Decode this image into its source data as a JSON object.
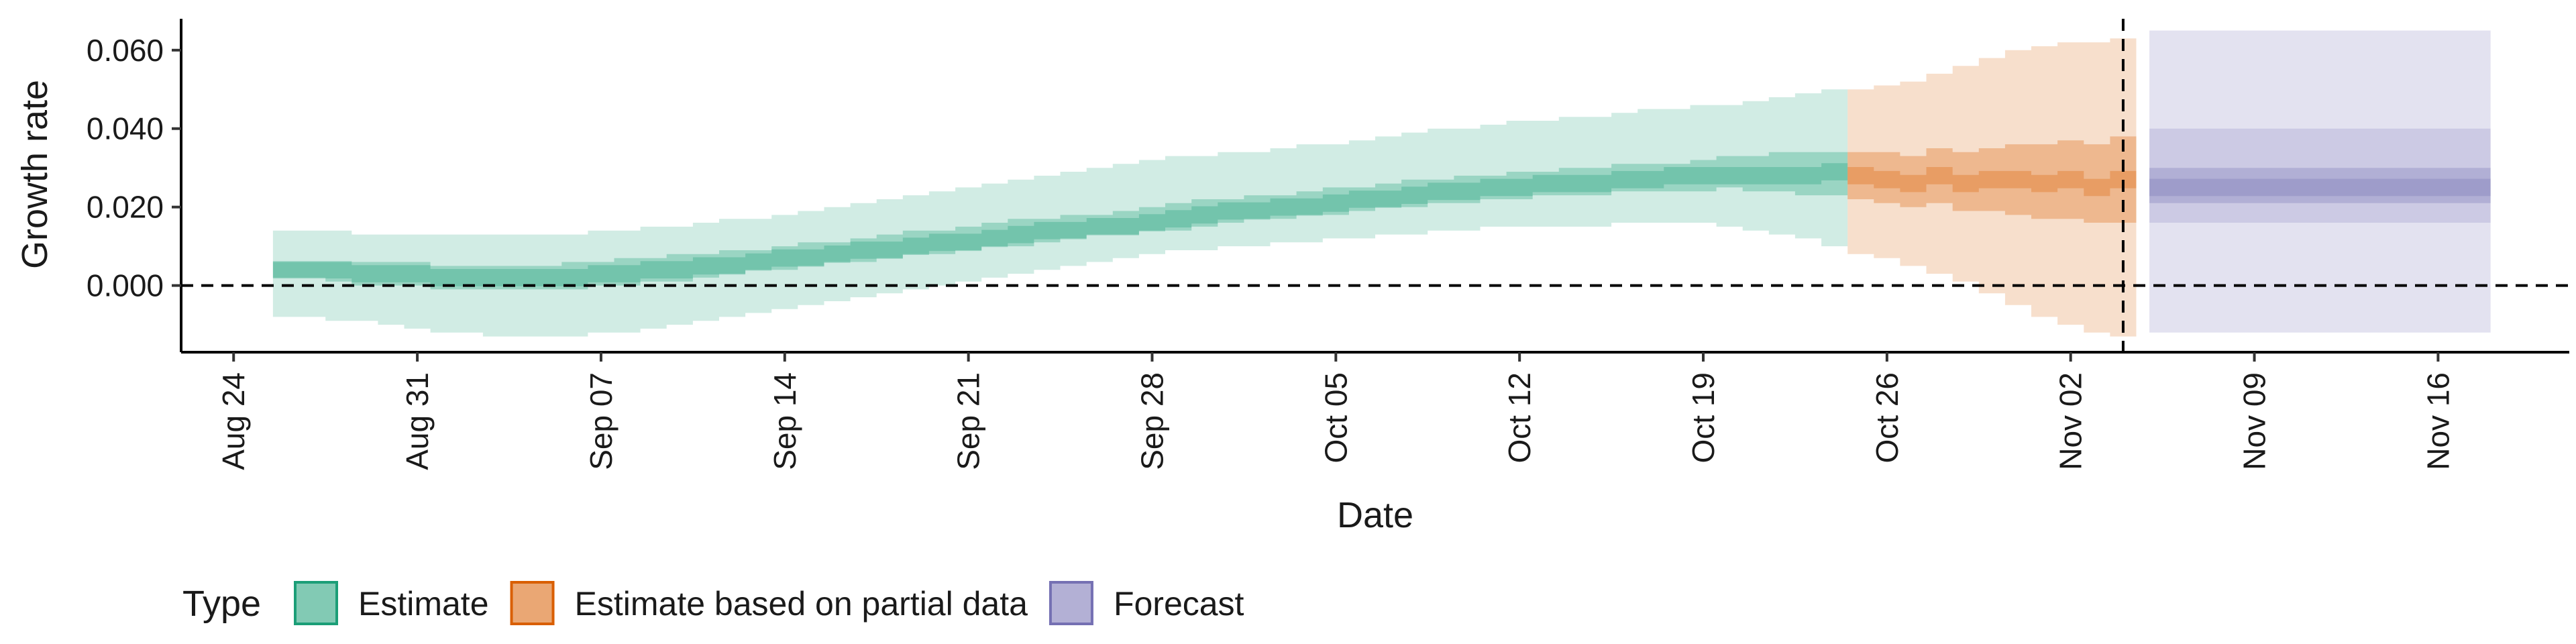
{
  "chart_data": {
    "type": "area",
    "xlabel": "Date",
    "ylabel": "Growth rate",
    "x_ticks": [
      "Aug 24",
      "Aug 31",
      "Sep 07",
      "Sep 14",
      "Sep 21",
      "Sep 28",
      "Oct 05",
      "Oct 12",
      "Oct 19",
      "Oct 26",
      "Nov 02",
      "Nov 09",
      "Nov 16"
    ],
    "y_ticks": [
      "0.000",
      "0.020",
      "0.040",
      "0.060"
    ],
    "y_tick_values": [
      0,
      0.02,
      0.04,
      0.06
    ],
    "ylim": [
      -0.017,
      0.068
    ],
    "xlim": [
      "2020-08-22",
      "2020-11-21"
    ],
    "reference_lines": [
      {
        "axis": "y",
        "value": 0,
        "style": "dashed"
      },
      {
        "axis": "x",
        "value": "2020-11-04",
        "style": "dashed"
      }
    ],
    "legend": {
      "title": "Type",
      "position": "bottom",
      "entries": [
        {
          "label": "Estimate",
          "color": "#1b9e77"
        },
        {
          "label": "Estimate based on partial data",
          "color": "#d95f02"
        },
        {
          "label": "Forecast",
          "color": "#7570b3"
        }
      ]
    },
    "series": [
      {
        "type": "Estimate",
        "color": "#1b9e77",
        "dates": [
          "2020-08-26",
          "2020-08-27",
          "2020-08-28",
          "2020-08-29",
          "2020-08-30",
          "2020-08-31",
          "2020-09-01",
          "2020-09-02",
          "2020-09-03",
          "2020-09-04",
          "2020-09-05",
          "2020-09-06",
          "2020-09-07",
          "2020-09-08",
          "2020-09-09",
          "2020-09-10",
          "2020-09-11",
          "2020-09-12",
          "2020-09-13",
          "2020-09-14",
          "2020-09-15",
          "2020-09-16",
          "2020-09-17",
          "2020-09-18",
          "2020-09-19",
          "2020-09-20",
          "2020-09-21",
          "2020-09-22",
          "2020-09-23",
          "2020-09-24",
          "2020-09-25",
          "2020-09-26",
          "2020-09-27",
          "2020-09-28",
          "2020-09-29",
          "2020-09-30",
          "2020-10-01",
          "2020-10-02",
          "2020-10-03",
          "2020-10-04",
          "2020-10-05",
          "2020-10-06",
          "2020-10-07",
          "2020-10-08",
          "2020-10-09",
          "2020-10-10",
          "2020-10-11",
          "2020-10-12",
          "2020-10-13",
          "2020-10-14",
          "2020-10-15",
          "2020-10-16",
          "2020-10-17",
          "2020-10-18",
          "2020-10-19",
          "2020-10-20",
          "2020-10-21",
          "2020-10-22",
          "2020-10-23",
          "2020-10-24"
        ],
        "median": [
          0.004,
          0.004,
          0.004,
          0.003,
          0.003,
          0.003,
          0.002,
          0.002,
          0.002,
          0.002,
          0.002,
          0.002,
          0.003,
          0.003,
          0.004,
          0.004,
          0.005,
          0.005,
          0.006,
          0.007,
          0.007,
          0.008,
          0.009,
          0.009,
          0.01,
          0.011,
          0.011,
          0.012,
          0.013,
          0.014,
          0.014,
          0.015,
          0.015,
          0.016,
          0.017,
          0.018,
          0.019,
          0.019,
          0.02,
          0.02,
          0.021,
          0.022,
          0.022,
          0.023,
          0.024,
          0.024,
          0.025,
          0.025,
          0.026,
          0.026,
          0.026,
          0.027,
          0.027,
          0.028,
          0.028,
          0.028,
          0.028,
          0.028,
          0.028,
          0.029
        ],
        "lower_50": [
          0.002,
          0.002,
          0.001,
          0.0,
          0.0,
          0.0,
          -0.001,
          -0.001,
          -0.001,
          -0.001,
          -0.001,
          -0.001,
          0.0,
          0.0,
          0.001,
          0.001,
          0.002,
          0.003,
          0.004,
          0.004,
          0.005,
          0.006,
          0.006,
          0.007,
          0.008,
          0.008,
          0.009,
          0.01,
          0.01,
          0.011,
          0.012,
          0.013,
          0.013,
          0.014,
          0.014,
          0.015,
          0.016,
          0.017,
          0.017,
          0.018,
          0.018,
          0.019,
          0.02,
          0.02,
          0.021,
          0.021,
          0.022,
          0.022,
          0.023,
          0.023,
          0.023,
          0.024,
          0.024,
          0.024,
          0.024,
          0.025,
          0.024,
          0.024,
          0.023,
          0.023
        ],
        "upper_50": [
          0.006,
          0.006,
          0.006,
          0.006,
          0.006,
          0.006,
          0.005,
          0.005,
          0.005,
          0.005,
          0.005,
          0.006,
          0.006,
          0.007,
          0.007,
          0.008,
          0.008,
          0.009,
          0.009,
          0.01,
          0.011,
          0.011,
          0.012,
          0.013,
          0.014,
          0.014,
          0.015,
          0.016,
          0.017,
          0.017,
          0.018,
          0.018,
          0.019,
          0.02,
          0.021,
          0.022,
          0.022,
          0.023,
          0.023,
          0.024,
          0.025,
          0.025,
          0.026,
          0.027,
          0.027,
          0.028,
          0.028,
          0.029,
          0.029,
          0.03,
          0.03,
          0.031,
          0.031,
          0.031,
          0.032,
          0.033,
          0.033,
          0.034,
          0.034,
          0.034
        ],
        "lower_90": [
          -0.008,
          -0.008,
          -0.009,
          -0.009,
          -0.01,
          -0.011,
          -0.012,
          -0.012,
          -0.013,
          -0.013,
          -0.013,
          -0.013,
          -0.012,
          -0.012,
          -0.011,
          -0.01,
          -0.009,
          -0.008,
          -0.007,
          -0.006,
          -0.005,
          -0.004,
          -0.003,
          -0.002,
          -0.001,
          0.0,
          0.001,
          0.002,
          0.003,
          0.004,
          0.005,
          0.006,
          0.007,
          0.008,
          0.009,
          0.009,
          0.01,
          0.01,
          0.011,
          0.011,
          0.012,
          0.012,
          0.013,
          0.013,
          0.014,
          0.014,
          0.015,
          0.015,
          0.015,
          0.015,
          0.015,
          0.016,
          0.016,
          0.016,
          0.016,
          0.015,
          0.014,
          0.013,
          0.012,
          0.01
        ],
        "upper_90": [
          0.014,
          0.014,
          0.014,
          0.013,
          0.013,
          0.013,
          0.013,
          0.013,
          0.013,
          0.013,
          0.013,
          0.013,
          0.014,
          0.014,
          0.015,
          0.015,
          0.016,
          0.017,
          0.017,
          0.018,
          0.019,
          0.02,
          0.021,
          0.022,
          0.023,
          0.024,
          0.025,
          0.026,
          0.027,
          0.028,
          0.029,
          0.03,
          0.031,
          0.032,
          0.033,
          0.033,
          0.034,
          0.034,
          0.035,
          0.036,
          0.036,
          0.037,
          0.038,
          0.039,
          0.04,
          0.04,
          0.041,
          0.042,
          0.042,
          0.043,
          0.043,
          0.044,
          0.045,
          0.045,
          0.046,
          0.046,
          0.047,
          0.048,
          0.049,
          0.05
        ]
      },
      {
        "type": "Estimate based on partial data",
        "color": "#d95f02",
        "dates": [
          "2020-10-25",
          "2020-10-26",
          "2020-10-27",
          "2020-10-28",
          "2020-10-29",
          "2020-10-30",
          "2020-10-31",
          "2020-11-01",
          "2020-11-02",
          "2020-11-03",
          "2020-11-04"
        ],
        "median": [
          0.028,
          0.027,
          0.026,
          0.028,
          0.026,
          0.027,
          0.027,
          0.026,
          0.027,
          0.025,
          0.027
        ],
        "lower_50": [
          0.022,
          0.021,
          0.02,
          0.021,
          0.019,
          0.019,
          0.018,
          0.017,
          0.017,
          0.016,
          0.016
        ],
        "upper_50": [
          0.034,
          0.034,
          0.033,
          0.035,
          0.034,
          0.035,
          0.036,
          0.036,
          0.037,
          0.036,
          0.038
        ],
        "lower_90": [
          0.008,
          0.007,
          0.005,
          0.003,
          0.001,
          -0.002,
          -0.005,
          -0.008,
          -0.01,
          -0.012,
          -0.013
        ],
        "upper_90": [
          0.05,
          0.051,
          0.052,
          0.054,
          0.056,
          0.058,
          0.06,
          0.061,
          0.062,
          0.062,
          0.063
        ]
      },
      {
        "type": "Forecast",
        "color": "#7570b3",
        "dates": [
          "2020-11-05",
          "2020-11-18"
        ],
        "median": [
          0.025,
          0.025
        ],
        "lower_50": [
          0.021,
          0.021
        ],
        "upper_50": [
          0.03,
          0.03
        ],
        "lower_90": [
          0.016,
          0.016
        ],
        "upper_90": [
          0.04,
          0.04
        ],
        "lower_outer": [
          -0.012,
          -0.012
        ],
        "upper_outer": [
          0.065,
          0.065
        ]
      }
    ]
  }
}
